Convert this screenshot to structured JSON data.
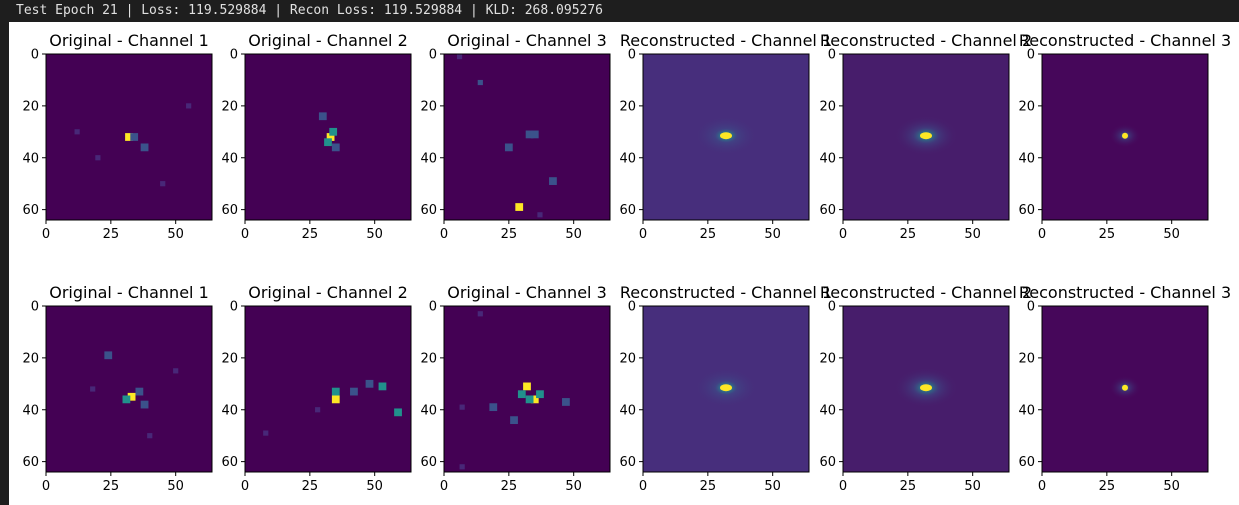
{
  "window": {
    "status_line": "Test Epoch 21 | Loss: 119.529884 | Recon Loss: 119.529884 | KLD: 268.095276"
  },
  "colormap": {
    "name": "viridis",
    "background": "#440154",
    "recon_background_ch1": "#472e7c",
    "recon_background_ch2": "#471d6b",
    "recon_background_ch3": "#46075a",
    "peak": "#fde725",
    "mid": "#21918c"
  },
  "chart_data": [
    {
      "type": "heatmap",
      "row": 0,
      "title": "Original - Channel 1",
      "xticks": [
        0,
        25,
        50
      ],
      "yticks": [
        0,
        20,
        40,
        60
      ],
      "xlim": [
        0,
        64
      ],
      "ylim": [
        64,
        0
      ],
      "points": [
        [
          32,
          32,
          1.0
        ],
        [
          34,
          32,
          0.4
        ],
        [
          38,
          36,
          0.3
        ],
        [
          20,
          40,
          0.15
        ],
        [
          45,
          50,
          0.12
        ],
        [
          12,
          30,
          0.1
        ],
        [
          55,
          20,
          0.1
        ]
      ]
    },
    {
      "type": "heatmap",
      "row": 0,
      "title": "Original - Channel 2",
      "xticks": [
        0,
        25,
        50
      ],
      "yticks": [
        0,
        20,
        40,
        60
      ],
      "xlim": [
        0,
        64
      ],
      "ylim": [
        64,
        0
      ],
      "points": [
        [
          33,
          32,
          1.0
        ],
        [
          32,
          34,
          0.7
        ],
        [
          34,
          30,
          0.5
        ],
        [
          30,
          24,
          0.3
        ],
        [
          35,
          36,
          0.3
        ]
      ]
    },
    {
      "type": "heatmap",
      "row": 0,
      "title": "Original - Channel 3",
      "xticks": [
        0,
        25,
        50
      ],
      "yticks": [
        0,
        20,
        40,
        60
      ],
      "xlim": [
        0,
        64
      ],
      "ylim": [
        64,
        0
      ],
      "points": [
        [
          29,
          59,
          1.0
        ],
        [
          33,
          31,
          0.35
        ],
        [
          35,
          31,
          0.35
        ],
        [
          42,
          49,
          0.35
        ],
        [
          25,
          36,
          0.3
        ],
        [
          14,
          11,
          0.25
        ],
        [
          6,
          1,
          0.2
        ],
        [
          37,
          62,
          0.2
        ]
      ]
    },
    {
      "type": "heatmap",
      "row": 0,
      "title": "Reconstructed - Channel 1",
      "xticks": [
        0,
        25,
        50
      ],
      "yticks": [
        0,
        20,
        40,
        60
      ],
      "xlim": [
        0,
        64
      ],
      "ylim": [
        64,
        0
      ],
      "blob": {
        "x": 32,
        "y": 31.5,
        "peak": 1.0
      }
    },
    {
      "type": "heatmap",
      "row": 0,
      "title": "Reconstructed - Channel 2",
      "xticks": [
        0,
        25,
        50
      ],
      "yticks": [
        0,
        20,
        40,
        60
      ],
      "xlim": [
        0,
        64
      ],
      "ylim": [
        64,
        0
      ],
      "blob": {
        "x": 32,
        "y": 31.5,
        "peak": 1.0
      }
    },
    {
      "type": "heatmap",
      "row": 0,
      "title": "Reconstructed - Channel 3",
      "xticks": [
        0,
        25,
        50
      ],
      "yticks": [
        0,
        20,
        40,
        60
      ],
      "xlim": [
        0,
        64
      ],
      "ylim": [
        64,
        0
      ],
      "blob": {
        "x": 32,
        "y": 31.5,
        "peak": 1.0
      }
    },
    {
      "type": "heatmap",
      "row": 1,
      "title": "Original - Channel 1",
      "xticks": [
        0,
        25,
        50
      ],
      "yticks": [
        0,
        20,
        40,
        60
      ],
      "xlim": [
        0,
        64
      ],
      "ylim": [
        64,
        0
      ],
      "points": [
        [
          33,
          35,
          1.0
        ],
        [
          31,
          36,
          0.6
        ],
        [
          36,
          33,
          0.4
        ],
        [
          24,
          19,
          0.3
        ],
        [
          38,
          38,
          0.3
        ],
        [
          18,
          32,
          0.15
        ],
        [
          50,
          25,
          0.12
        ],
        [
          40,
          50,
          0.12
        ]
      ]
    },
    {
      "type": "heatmap",
      "row": 1,
      "title": "Original - Channel 2",
      "xticks": [
        0,
        25,
        50
      ],
      "yticks": [
        0,
        20,
        40,
        60
      ],
      "xlim": [
        0,
        64
      ],
      "ylim": [
        64,
        0
      ],
      "points": [
        [
          35,
          36,
          1.0
        ],
        [
          35,
          33,
          0.6
        ],
        [
          53,
          31,
          0.5
        ],
        [
          59,
          41,
          0.45
        ],
        [
          42,
          33,
          0.3
        ],
        [
          48,
          30,
          0.3
        ],
        [
          28,
          40,
          0.2
        ],
        [
          8,
          49,
          0.15
        ]
      ]
    },
    {
      "type": "heatmap",
      "row": 1,
      "title": "Original - Channel 3",
      "xticks": [
        0,
        25,
        50
      ],
      "yticks": [
        0,
        20,
        40,
        60
      ],
      "xlim": [
        0,
        64
      ],
      "ylim": [
        64,
        0
      ],
      "points": [
        [
          32,
          31,
          1.0
        ],
        [
          35,
          36,
          1.0
        ],
        [
          30,
          34,
          0.5
        ],
        [
          37,
          34,
          0.5
        ],
        [
          33,
          36,
          0.45
        ],
        [
          19,
          39,
          0.35
        ],
        [
          27,
          44,
          0.3
        ],
        [
          47,
          37,
          0.3
        ],
        [
          7,
          39,
          0.2
        ],
        [
          14,
          3,
          0.15
        ],
        [
          7,
          62,
          0.15
        ]
      ]
    },
    {
      "type": "heatmap",
      "row": 1,
      "title": "Reconstructed - Channel 1",
      "xticks": [
        0,
        25,
        50
      ],
      "yticks": [
        0,
        20,
        40,
        60
      ],
      "xlim": [
        0,
        64
      ],
      "ylim": [
        64,
        0
      ],
      "blob": {
        "x": 32,
        "y": 31.5,
        "peak": 1.0
      }
    },
    {
      "type": "heatmap",
      "row": 1,
      "title": "Reconstructed - Channel 2",
      "xticks": [
        0,
        25,
        50
      ],
      "yticks": [
        0,
        20,
        40,
        60
      ],
      "xlim": [
        0,
        64
      ],
      "ylim": [
        64,
        0
      ],
      "blob": {
        "x": 32,
        "y": 31.5,
        "peak": 1.0
      }
    },
    {
      "type": "heatmap",
      "row": 1,
      "title": "Reconstructed - Channel 3",
      "xticks": [
        0,
        25,
        50
      ],
      "yticks": [
        0,
        20,
        40,
        60
      ],
      "xlim": [
        0,
        64
      ],
      "ylim": [
        64,
        0
      ],
      "blob": {
        "x": 32,
        "y": 31.5,
        "peak": 1.0
      }
    }
  ]
}
